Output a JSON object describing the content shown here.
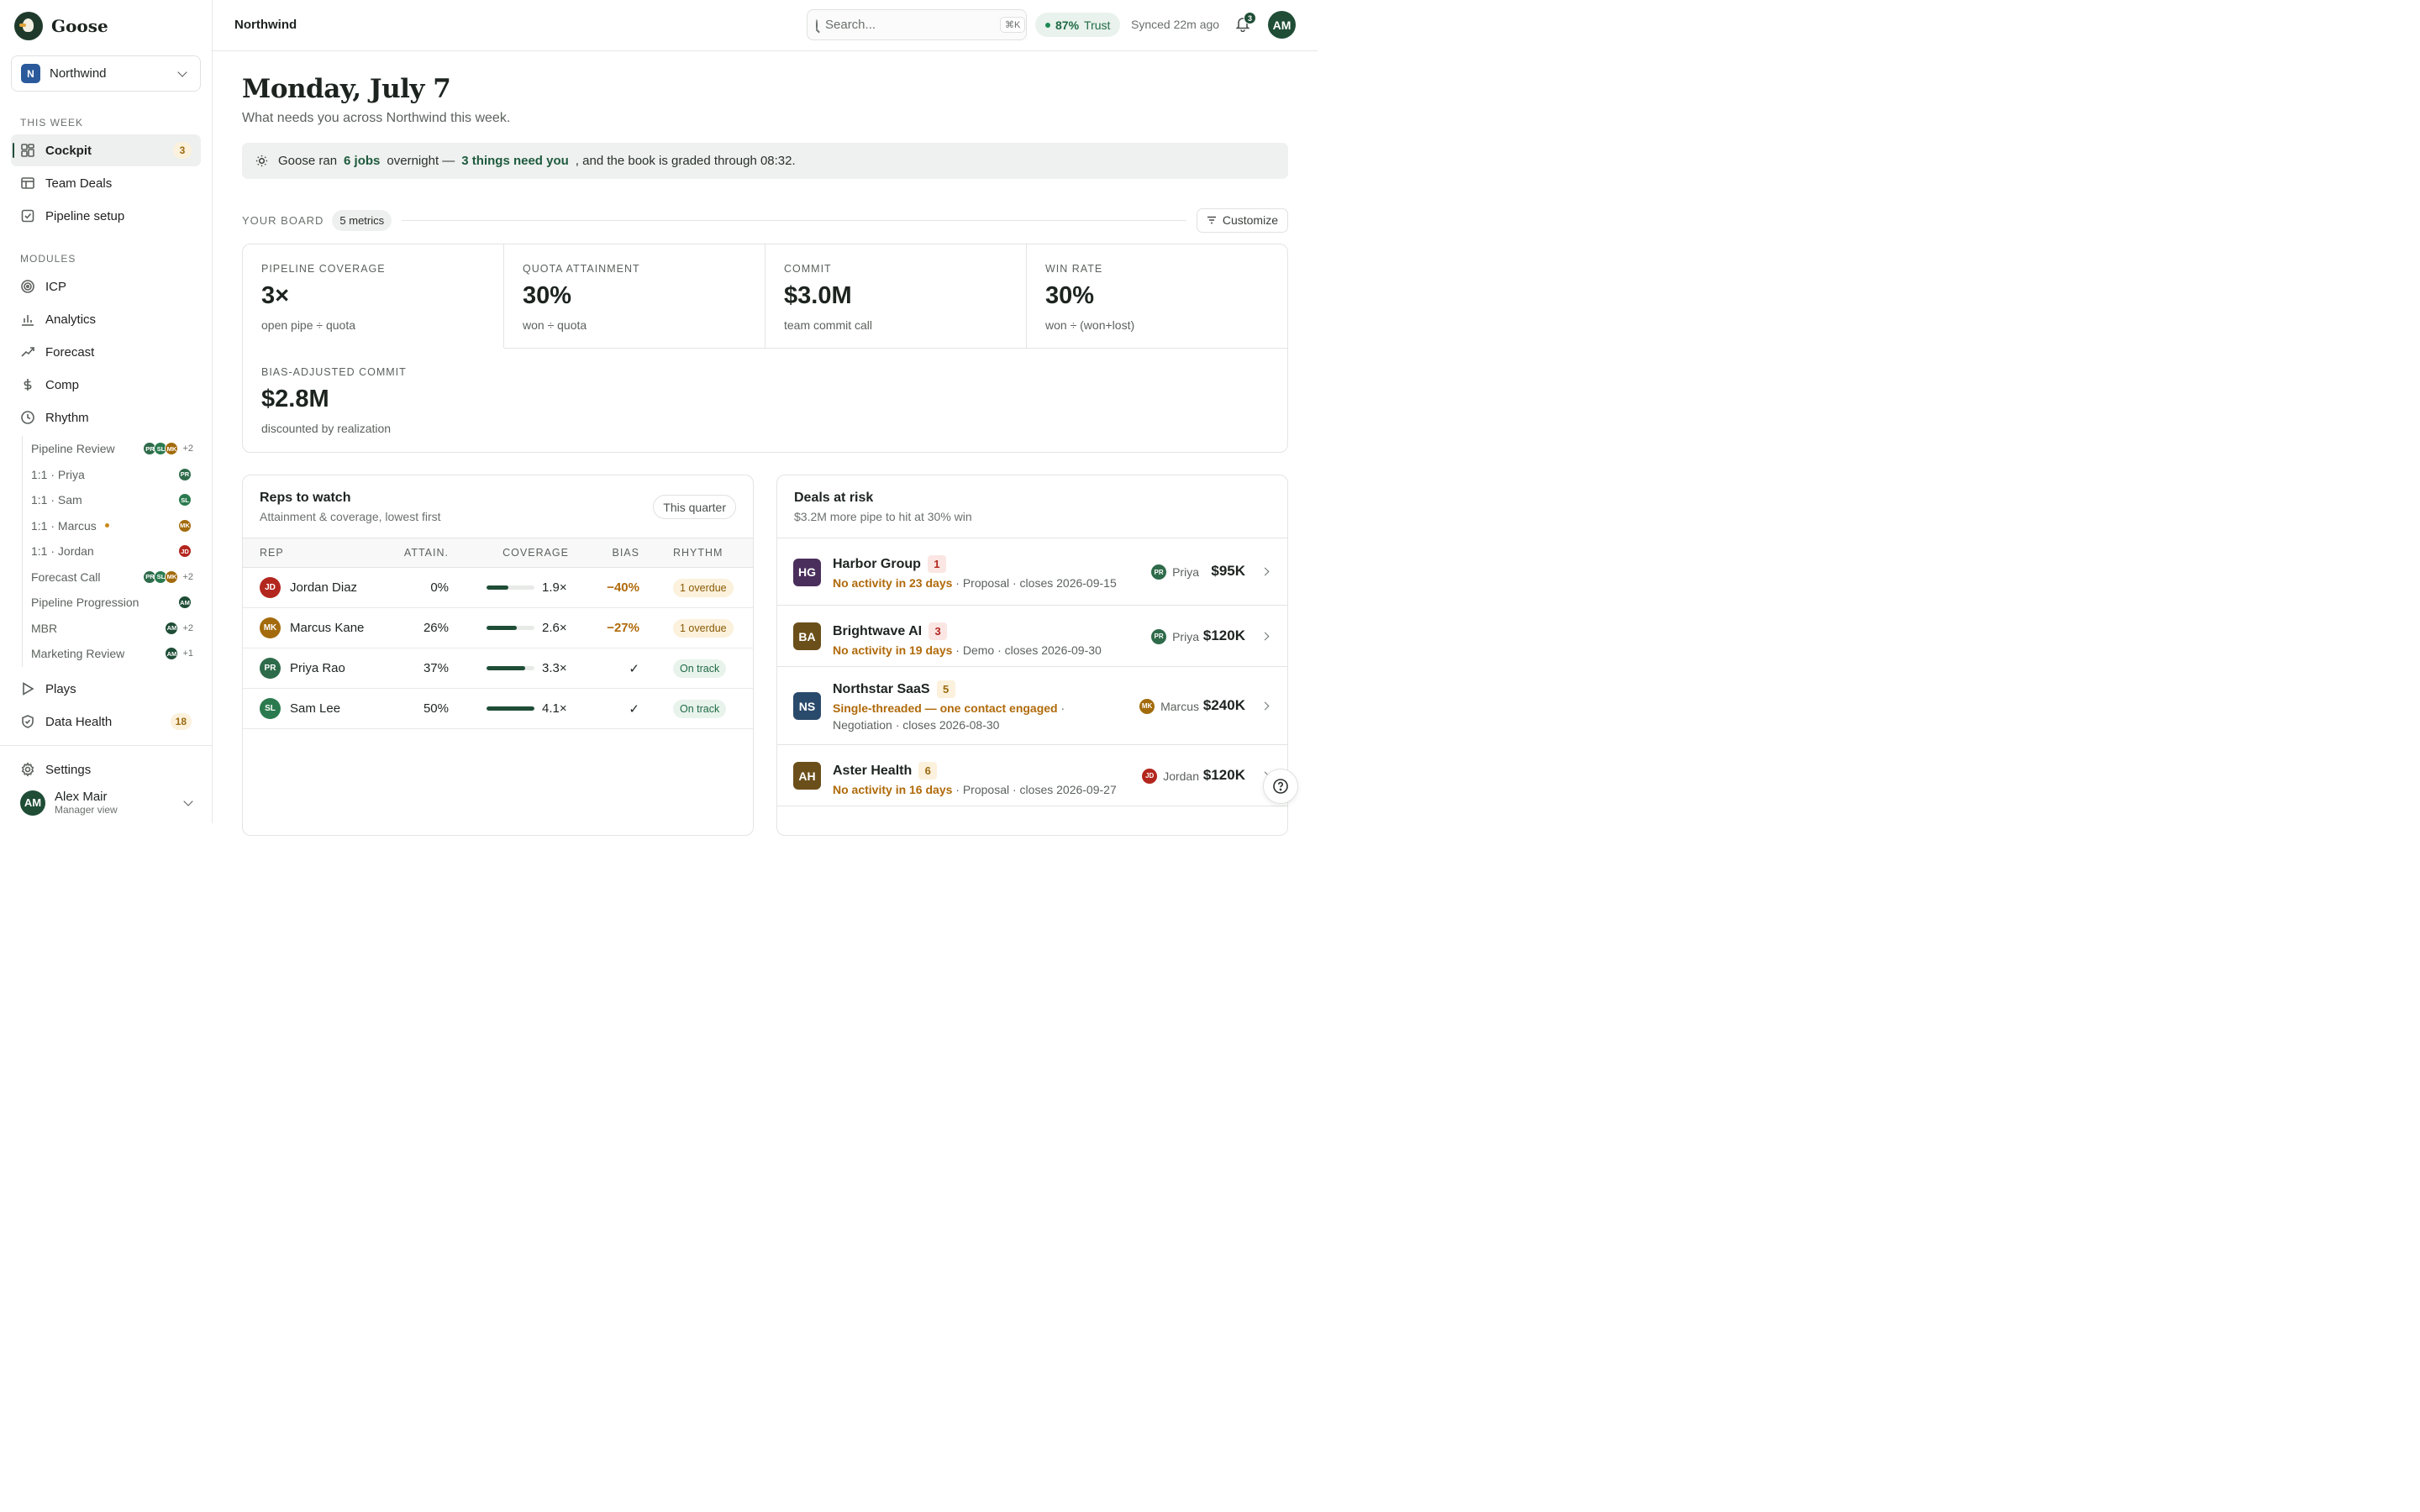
{
  "brand": {
    "name": "Goose"
  },
  "workspace": {
    "initial": "N",
    "name": "Northwind"
  },
  "sidebar": {
    "section_week": "THIS WEEK",
    "week_items": [
      {
        "label": "Cockpit",
        "badge": "3"
      },
      {
        "label": "Team Deals"
      },
      {
        "label": "Pipeline setup"
      }
    ],
    "section_modules": "MODULES",
    "module_items": [
      {
        "label": "ICP"
      },
      {
        "label": "Analytics"
      },
      {
        "label": "Forecast"
      },
      {
        "label": "Comp"
      },
      {
        "label": "Rhythm"
      }
    ],
    "rhythm_items": [
      {
        "label": "Pipeline Review",
        "avatars": [
          "PR",
          "SL",
          "MK"
        ],
        "more": "+2"
      },
      {
        "label": "1:1 · Priya",
        "avatars": [
          "PR"
        ]
      },
      {
        "label": "1:1 · Sam",
        "avatars": [
          "SL"
        ]
      },
      {
        "label": "1:1 · Marcus",
        "avatars": [
          "MK"
        ]
      },
      {
        "label": "1:1 · Jordan",
        "avatars": [
          "JD"
        ]
      },
      {
        "label": "Forecast Call",
        "avatars": [
          "PR",
          "SL",
          "MK"
        ],
        "more": "+2"
      },
      {
        "label": "Pipeline Progression",
        "avatars": [
          "AM"
        ]
      },
      {
        "label": "MBR",
        "avatars": [
          "AM"
        ],
        "more": "+2"
      },
      {
        "label": "Marketing Review",
        "avatars": [
          "AM"
        ],
        "more": "+1"
      }
    ],
    "bottom_items": [
      {
        "label": "Plays"
      },
      {
        "label": "Data Health",
        "badge": "18"
      }
    ],
    "settings_label": "Settings",
    "user": {
      "initials": "AM",
      "name": "Alex Mair",
      "role": "Manager view"
    }
  },
  "topbar": {
    "breadcrumb": "Northwind",
    "search_placeholder": "Search...",
    "search_shortcut": "⌘K",
    "trust_value": "87%",
    "trust_label": "Trust",
    "synced": "Synced 22m ago",
    "notifications": "3",
    "avatar": "AM"
  },
  "main": {
    "title": "Monday, July 7",
    "subtitle": "What needs you across Northwind this week.",
    "banner": {
      "p1": "Goose ran",
      "jobs": "6 jobs",
      "p2": "overnight —",
      "needs": "3 things need you",
      "p3": ", and the book is graded through 08:32."
    },
    "board_label": "YOUR BOARD",
    "metrics_count": "5 metrics",
    "customize": "Customize",
    "metrics": [
      {
        "label": "PIPELINE COVERAGE",
        "value": "3×",
        "sub": "open pipe ÷ quota"
      },
      {
        "label": "QUOTA ATTAINMENT",
        "value": "30%",
        "sub": "won ÷ quota"
      },
      {
        "label": "COMMIT",
        "value": "$3.0M",
        "sub": "team commit call"
      },
      {
        "label": "WIN RATE",
        "value": "30%",
        "sub": "won ÷ (won+lost)"
      },
      {
        "label": "BIAS-ADJUSTED COMMIT",
        "value": "$2.8M",
        "sub": "discounted by realization"
      }
    ]
  },
  "reps": {
    "title": "Reps to watch",
    "subtitle": "Attainment & coverage, lowest first",
    "period": "This quarter",
    "columns": [
      "REP",
      "ATTAIN.",
      "COVERAGE",
      "BIAS",
      "RHYTHM"
    ],
    "rows": [
      {
        "initials": "JD",
        "name": "Jordan Diaz",
        "attain": "0%",
        "coverage": "1.9×",
        "coverage_fill": 0.46,
        "bias": "−40%",
        "rhythm": "1 overdue",
        "status": "overdue"
      },
      {
        "initials": "MK",
        "name": "Marcus Kane",
        "attain": "26%",
        "coverage": "2.6×",
        "coverage_fill": 0.63,
        "bias": "−27%",
        "rhythm": "1 overdue",
        "status": "overdue"
      },
      {
        "initials": "PR",
        "name": "Priya Rao",
        "attain": "37%",
        "coverage": "3.3×",
        "coverage_fill": 0.8,
        "bias": "✓",
        "rhythm": "On track",
        "status": "ontrack"
      },
      {
        "initials": "SL",
        "name": "Sam Lee",
        "attain": "50%",
        "coverage": "4.1×",
        "coverage_fill": 1.0,
        "bias": "✓",
        "rhythm": "On track",
        "status": "ontrack"
      }
    ]
  },
  "deals": {
    "title": "Deals at risk",
    "subtitle": "$3.2M more pipe to hit at 30% win",
    "rows": [
      {
        "initials": "HG",
        "name": "Harbor Group",
        "num": "1",
        "warn": "No activity in 23 days",
        "meta": " · Proposal · closes 2026-09-15",
        "owner_initials": "PR",
        "owner": "Priya",
        "amount": "$95K"
      },
      {
        "initials": "BA",
        "name": "Brightwave AI",
        "num": "3",
        "warn": "No activity in 19 days",
        "meta": " · Demo · closes 2026-09-30",
        "owner_initials": "PR",
        "owner": "Priya",
        "amount": "$120K"
      },
      {
        "initials": "NS",
        "name": "Northstar SaaS",
        "num": "5",
        "warn": "Single-threaded — one contact engaged",
        "meta": " · Negotiation · closes 2026-08-30",
        "owner_initials": "MK",
        "owner": "Marcus",
        "amount": "$240K"
      },
      {
        "initials": "AH",
        "name": "Aster Health",
        "num": "6",
        "warn": "No activity in 16 days",
        "meta": " · Proposal · closes 2026-09-27",
        "owner_initials": "JD",
        "owner": "Jordan",
        "amount": "$120K"
      }
    ]
  },
  "colors": {
    "accent": "#1f4d36",
    "PR": "#2e6b4a",
    "SL": "#2b7a4f",
    "MK": "#a36b0c",
    "JD": "#b3261e",
    "AM": "#1f4d36",
    "HG": "#4a2f5c",
    "BA": "#6b4f1a",
    "NS": "#2a4a6b",
    "AH": "#6b4f1a"
  }
}
